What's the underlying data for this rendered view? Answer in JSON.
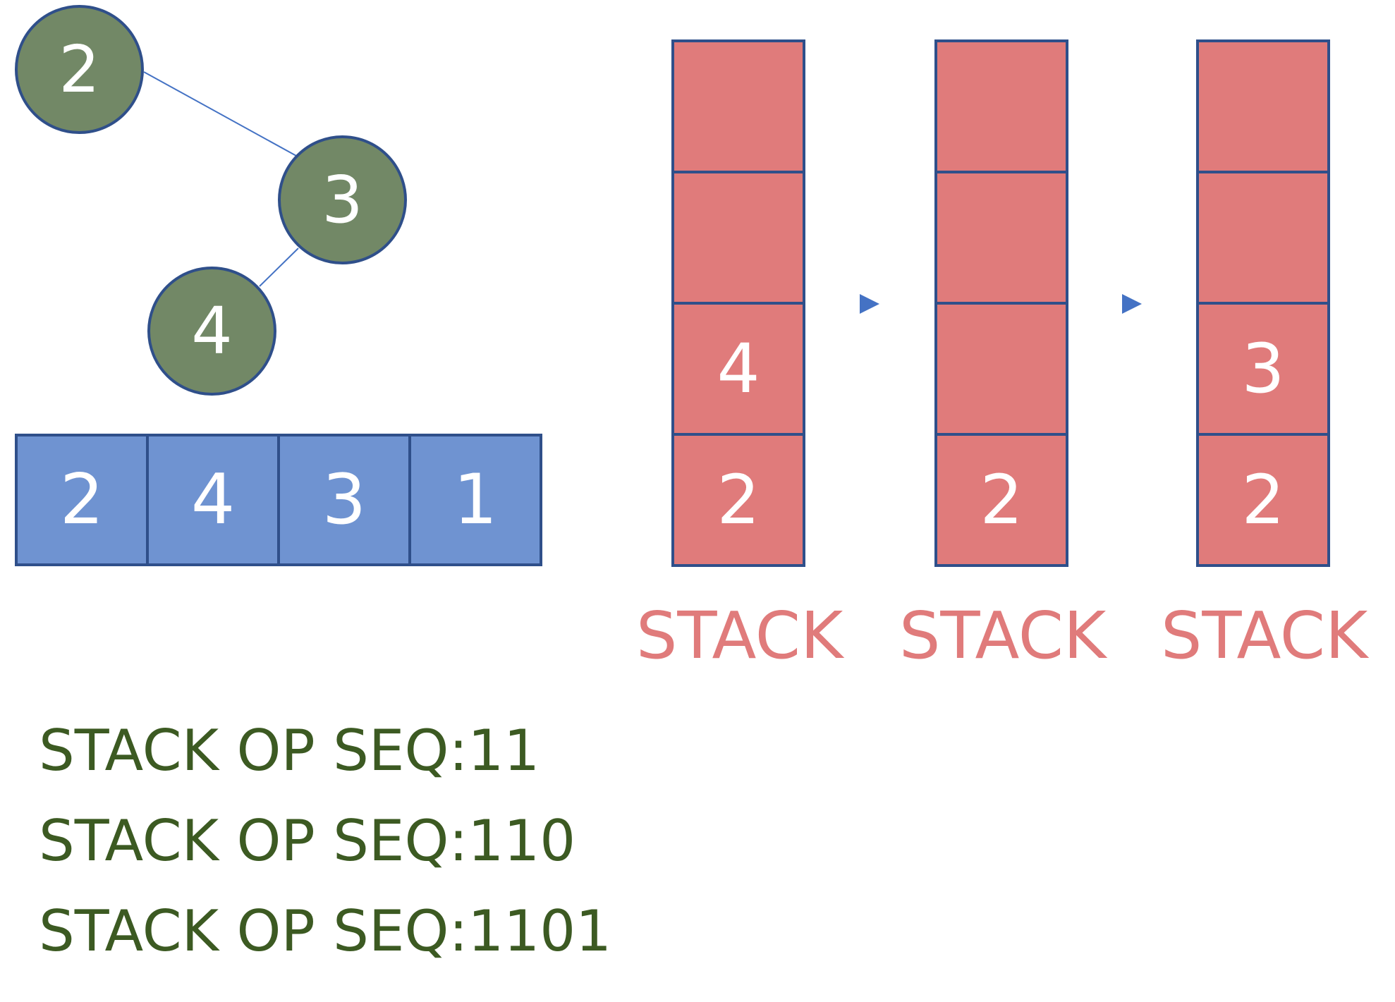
{
  "colors": {
    "tree_node_fill": "#728866",
    "outline": "#2f4f8a",
    "array_fill": "#6f93d1",
    "stack_fill": "#e07b7b",
    "stack_caption": "#e07b7b",
    "arrow": "#4472c4",
    "sequence_text": "#3c5a22"
  },
  "tree": {
    "nodes": [
      {
        "id": "2",
        "label": "2"
      },
      {
        "id": "3",
        "label": "3"
      },
      {
        "id": "4",
        "label": "4"
      }
    ],
    "edges": [
      {
        "from": "2",
        "to": "3"
      },
      {
        "from": "3",
        "to": "4"
      }
    ]
  },
  "array": {
    "cells": [
      "2",
      "4",
      "3",
      "1"
    ]
  },
  "stacks": [
    {
      "caption": "STACK",
      "cells_top_to_bottom": [
        "",
        "",
        "4",
        "2"
      ]
    },
    {
      "caption": "STACK",
      "cells_top_to_bottom": [
        "",
        "",
        "",
        "2"
      ]
    },
    {
      "caption": "STACK",
      "cells_top_to_bottom": [
        "",
        "",
        "3",
        "2"
      ]
    }
  ],
  "arrows": [
    "arrow-right-icon",
    "arrow-right-icon"
  ],
  "sequences": [
    "STACK OP SEQ:11",
    "STACK OP SEQ:110",
    "STACK OP SEQ:1101"
  ]
}
